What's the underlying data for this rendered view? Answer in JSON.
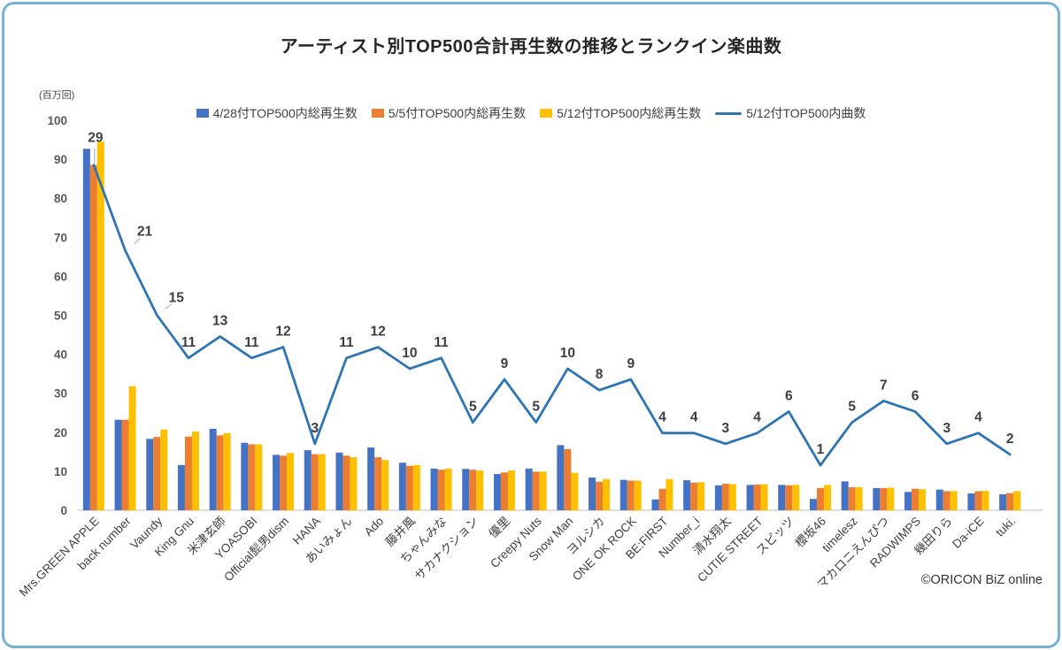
{
  "title": "アーティスト別TOP500合計再生数の推移とランクイン楽曲数",
  "y_axis_unit": "(百万回)",
  "watermark": "©ORICON BiZ online",
  "frame_color": "#74b3d6",
  "chart_data": {
    "type": "bar+line combo",
    "title": "アーティスト別TOP500合計再生数の推移とランクイン楽曲数",
    "ylabel": "(百万回)",
    "ylim": [
      0,
      100
    ],
    "y_ticks": [
      0,
      10,
      20,
      30,
      40,
      50,
      60,
      70,
      80,
      90,
      100
    ],
    "grid": false,
    "legend_position": "top",
    "categories": [
      "Mrs.GREEN APPLE",
      "back number",
      "Vaundy",
      "King Gnu",
      "米津玄師",
      "YOASOBI",
      "Official髭男dism",
      "HANA",
      "あいみょん",
      "Ado",
      "藤井風",
      "ちゃんみな",
      "サカナクション",
      "優里",
      "Creepy Nuts",
      "Snow Man",
      "ヨルシカ",
      "ONE OK ROCK",
      "BE:FIRST",
      "Number_i",
      "清水翔太",
      "CUTIE STREET",
      "スピッツ",
      "櫻坂46",
      "timelesz",
      "マカロニえんぴつ",
      "RADWIMPS",
      "幾田りら",
      "Da-iCE",
      "tuki."
    ],
    "series": [
      {
        "name": "4/28付TOP500内総再生数",
        "type": "bar",
        "color": "#4472c4",
        "values": [
          92.7,
          23.2,
          18.3,
          11.6,
          20.9,
          17.3,
          14.2,
          15.4,
          14.8,
          16.1,
          12.2,
          10.7,
          10.6,
          9.3,
          10.7,
          16.7,
          8.4,
          7.8,
          2.8,
          7.7,
          6.4,
          6.5,
          6.5,
          2.9,
          7.4,
          5.7,
          4.7,
          5.3,
          4.3,
          4.1
        ]
      },
      {
        "name": "5/5付TOP500内総再生数",
        "type": "bar",
        "color": "#ed7d31",
        "values": [
          88.5,
          23.2,
          18.8,
          18.9,
          19.2,
          16.9,
          14.0,
          14.4,
          14.0,
          13.6,
          11.4,
          10.4,
          10.4,
          9.7,
          9.9,
          15.7,
          7.3,
          7.6,
          5.5,
          7.1,
          6.8,
          6.6,
          6.4,
          5.7,
          5.9,
          5.7,
          5.5,
          4.9,
          4.9,
          4.4
        ]
      },
      {
        "name": "5/12付TOP500内総再生数",
        "type": "bar",
        "color": "#ffc000",
        "values": [
          94.5,
          31.8,
          20.7,
          20.2,
          19.8,
          16.9,
          14.7,
          14.4,
          13.6,
          12.9,
          11.6,
          10.7,
          10.2,
          10.2,
          9.9,
          9.6,
          8.0,
          7.6,
          8.0,
          7.2,
          6.7,
          6.7,
          6.5,
          6.5,
          5.9,
          5.8,
          5.4,
          4.9,
          5.0,
          4.9
        ]
      },
      {
        "name": "5/12付TOP500内曲数",
        "type": "line",
        "color": "#2e75b6",
        "labels_shown": true,
        "values": [
          29,
          21,
          15,
          11,
          13,
          11,
          12,
          3,
          11,
          12,
          10,
          11,
          5,
          9,
          5,
          10,
          8,
          9,
          4,
          4,
          3,
          4,
          6,
          1,
          5,
          7,
          6,
          3,
          4,
          2
        ]
      }
    ]
  }
}
